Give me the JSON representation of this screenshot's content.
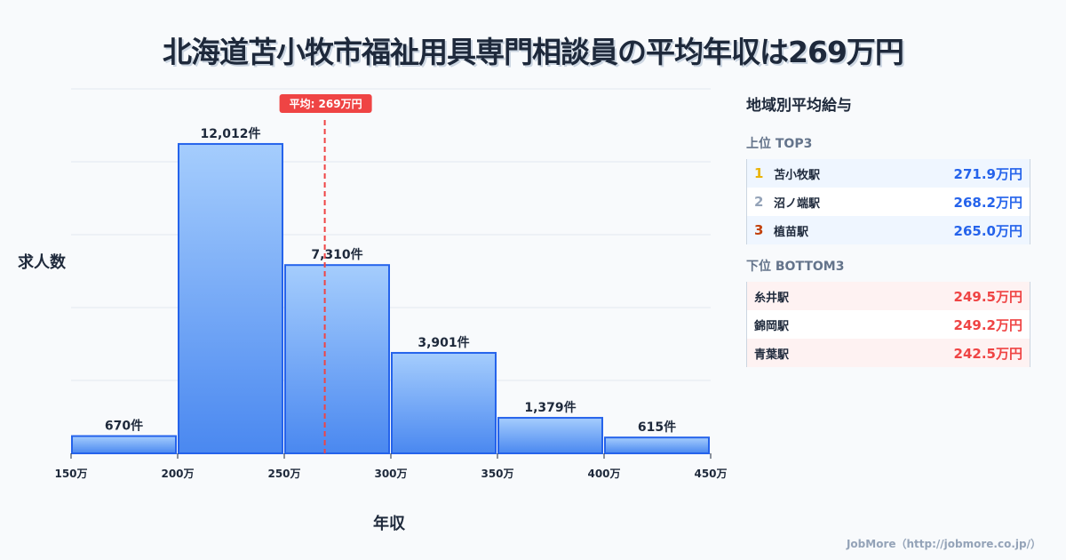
{
  "title": "北海道苫小牧市福祉用具専門相談員の平均年収は269万円",
  "chart_data": {
    "type": "bar",
    "title": "北海道苫小牧市福祉用具専門相談員の平均年収は269万円",
    "xlabel": "年収",
    "ylabel": "求人数",
    "bins": [
      [
        150,
        200
      ],
      [
        200,
        250
      ],
      [
        250,
        300
      ],
      [
        300,
        350
      ],
      [
        350,
        400
      ],
      [
        400,
        450
      ]
    ],
    "values": [
      670,
      12012,
      7310,
      3901,
      1379,
      615
    ],
    "value_labels": [
      "670件",
      "12,012件",
      "7,310件",
      "3,901件",
      "1,379件",
      "615件"
    ],
    "x_ticks": [
      150,
      200,
      250,
      300,
      350,
      400,
      450
    ],
    "x_tick_labels": [
      "150万",
      "200万",
      "250万",
      "300万",
      "350万",
      "400万",
      "450万"
    ],
    "xlim": [
      150,
      450
    ],
    "ylim": [
      0,
      14150
    ],
    "grid": true,
    "mean": 269,
    "mean_label": "平均: 269万円",
    "colors": {
      "bar_top": "#a5cdfd",
      "bar_bottom": "#4a88f0",
      "bar_stroke": "#2563eb",
      "mean": "#ef4444"
    }
  },
  "panel": {
    "title": "地域別平均給与",
    "top_heading": "上位 TOP3",
    "top": [
      {
        "rank": "1",
        "name": "苫小牧駅",
        "value": "271.9万円",
        "rank_color": "#eab308"
      },
      {
        "rank": "2",
        "name": "沼ノ端駅",
        "value": "268.2万円",
        "rank_color": "#94a3b8"
      },
      {
        "rank": "3",
        "name": "植苗駅",
        "value": "265.0万円",
        "rank_color": "#c2410c"
      }
    ],
    "bottom_heading": "下位 BOTTOM3",
    "bottom": [
      {
        "name": "糸井駅",
        "value": "249.5万円"
      },
      {
        "name": "錦岡駅",
        "value": "249.2万円"
      },
      {
        "name": "青葉駅",
        "value": "242.5万円"
      }
    ]
  },
  "footer": "JobMore（http://jobmore.co.jp/）"
}
